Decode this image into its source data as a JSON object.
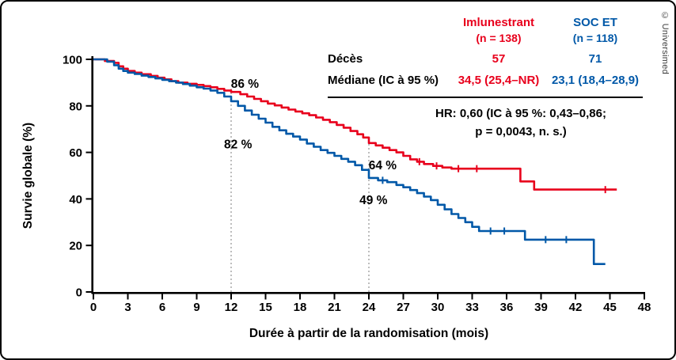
{
  "figure": {
    "credit": "© Universimed"
  },
  "table": {
    "col1": {
      "name": "Imlunestrant",
      "n": "(n = 138)",
      "color": "#e8001c"
    },
    "col2": {
      "name": "SOC ET",
      "n": "(n = 118)",
      "color": "#0058a8"
    },
    "rows": [
      {
        "label": "Décès",
        "v1": "57",
        "v2": "71"
      },
      {
        "label": "Médiane (IC à 95 %)",
        "v1": "34,5 (25,4–NR)",
        "v2": "23,1 (18,4–28,9)"
      }
    ],
    "hr_line1": "HR: 0,60 (IC à 95 %: 0,43–0,86;",
    "hr_line2": "p = 0,0043, n. s.)"
  },
  "chart_data": {
    "type": "line",
    "subtype": "kaplan_meier_step",
    "title": "",
    "xlabel": "Durée à partir de la randomisation (mois)",
    "ylabel": "Survie globale (%)",
    "xlim": [
      0,
      48
    ],
    "ylim": [
      0,
      100
    ],
    "xticks": [
      0,
      3,
      6,
      9,
      12,
      15,
      18,
      21,
      24,
      27,
      30,
      33,
      36,
      39,
      42,
      45,
      48
    ],
    "yticks": [
      0,
      20,
      40,
      60,
      80,
      100
    ],
    "grid": false,
    "legend_position": "table-top-right",
    "reference_lines": [
      {
        "x": 12,
        "to_y": 88.5
      },
      {
        "x": 24,
        "to_y": 65.5
      }
    ],
    "annotations": [
      {
        "text": "86 %",
        "x": 13.2,
        "y": 89.5,
        "series": "Imlunestrant"
      },
      {
        "text": "82 %",
        "x": 12.6,
        "y": 63.5,
        "series": "SOC ET"
      },
      {
        "text": "64 %",
        "x": 25.2,
        "y": 54.5,
        "series": "Imlunestrant"
      },
      {
        "text": "49 %",
        "x": 24.4,
        "y": 39.5,
        "series": "SOC ET"
      }
    ],
    "series": [
      {
        "name": "Imlunestrant",
        "color": "#e8001c",
        "milestones": {
          "12_months_pct": 86,
          "24_months_pct": 64
        },
        "points": [
          [
            0,
            100
          ],
          [
            1,
            99.3
          ],
          [
            1.8,
            98.5
          ],
          [
            2.2,
            97
          ],
          [
            2.6,
            96
          ],
          [
            3,
            95
          ],
          [
            3.6,
            94.3
          ],
          [
            4.2,
            93.6
          ],
          [
            5,
            92.9
          ],
          [
            5.6,
            92.1
          ],
          [
            6.2,
            91.4
          ],
          [
            6.8,
            90.6
          ],
          [
            7.4,
            90
          ],
          [
            8.2,
            89.5
          ],
          [
            9,
            89
          ],
          [
            9.6,
            88.5
          ],
          [
            10.2,
            88
          ],
          [
            10.8,
            87.3
          ],
          [
            11.4,
            86.6
          ],
          [
            12,
            86
          ],
          [
            12.8,
            85
          ],
          [
            13.4,
            84
          ],
          [
            14,
            83
          ],
          [
            14.6,
            82
          ],
          [
            15.2,
            81
          ],
          [
            15.8,
            80.2
          ],
          [
            16.4,
            79.3
          ],
          [
            17,
            78.4
          ],
          [
            17.6,
            77.6
          ],
          [
            18.2,
            76.8
          ],
          [
            18.8,
            76
          ],
          [
            19.4,
            75
          ],
          [
            20,
            74
          ],
          [
            20.6,
            73
          ],
          [
            21.2,
            71.8
          ],
          [
            21.8,
            70.6
          ],
          [
            22.4,
            69.2
          ],
          [
            23,
            67.8
          ],
          [
            23.5,
            66.4
          ],
          [
            24,
            64
          ],
          [
            24.6,
            63
          ],
          [
            25.2,
            62
          ],
          [
            25.8,
            61
          ],
          [
            26.4,
            60
          ],
          [
            27,
            58.5
          ],
          [
            27.6,
            57
          ],
          [
            28.2,
            56
          ],
          [
            28.8,
            55
          ],
          [
            29.6,
            54.2
          ],
          [
            30.4,
            53.5
          ],
          [
            31.2,
            53
          ],
          [
            37.2,
            47.5
          ],
          [
            38.4,
            44
          ],
          [
            45.6,
            44
          ]
        ],
        "censors": [
          28.4,
          29.9,
          31.8,
          33.4,
          44.6
        ]
      },
      {
        "name": "SOC ET",
        "color": "#0058a8",
        "milestones": {
          "12_months_pct": 82,
          "24_months_pct": 49
        },
        "points": [
          [
            0,
            100
          ],
          [
            1.2,
            99
          ],
          [
            1.8,
            97.5
          ],
          [
            2.2,
            96
          ],
          [
            2.6,
            95
          ],
          [
            3,
            94.3
          ],
          [
            3.6,
            93.7
          ],
          [
            4.2,
            93
          ],
          [
            4.8,
            92.4
          ],
          [
            5.4,
            91.8
          ],
          [
            6,
            91.2
          ],
          [
            6.6,
            90.6
          ],
          [
            7.2,
            90
          ],
          [
            7.8,
            89.4
          ],
          [
            8.4,
            88.7
          ],
          [
            9,
            88
          ],
          [
            9.6,
            87.4
          ],
          [
            10.2,
            86.6
          ],
          [
            10.8,
            85.6
          ],
          [
            11.4,
            84
          ],
          [
            12,
            82
          ],
          [
            12.6,
            80
          ],
          [
            13.2,
            78
          ],
          [
            13.8,
            76.2
          ],
          [
            14.4,
            74.5
          ],
          [
            15,
            72.8
          ],
          [
            15.6,
            71
          ],
          [
            16.2,
            69.5
          ],
          [
            16.8,
            68
          ],
          [
            17.4,
            66.8
          ],
          [
            18,
            65.5
          ],
          [
            18.6,
            63.8
          ],
          [
            19.2,
            62.4
          ],
          [
            19.8,
            61
          ],
          [
            20.4,
            59.8
          ],
          [
            21,
            58.5
          ],
          [
            21.6,
            57.2
          ],
          [
            22.2,
            56
          ],
          [
            22.8,
            54.5
          ],
          [
            23.4,
            52.5
          ],
          [
            24,
            49
          ],
          [
            24.8,
            48
          ],
          [
            25.6,
            47.2
          ],
          [
            26.4,
            46
          ],
          [
            27,
            45
          ],
          [
            27.6,
            43.8
          ],
          [
            28.2,
            42.5
          ],
          [
            28.8,
            41
          ],
          [
            29.4,
            39.5
          ],
          [
            30,
            37.5
          ],
          [
            30.6,
            35.5
          ],
          [
            31.2,
            33.5
          ],
          [
            31.8,
            31.8
          ],
          [
            32.4,
            30
          ],
          [
            33,
            28
          ],
          [
            33.6,
            26.2
          ],
          [
            37.6,
            22.5
          ],
          [
            43.6,
            12
          ],
          [
            44.6,
            12
          ]
        ],
        "censors": [
          25.2,
          34.6,
          35.8,
          39.4,
          41.2
        ]
      }
    ]
  }
}
